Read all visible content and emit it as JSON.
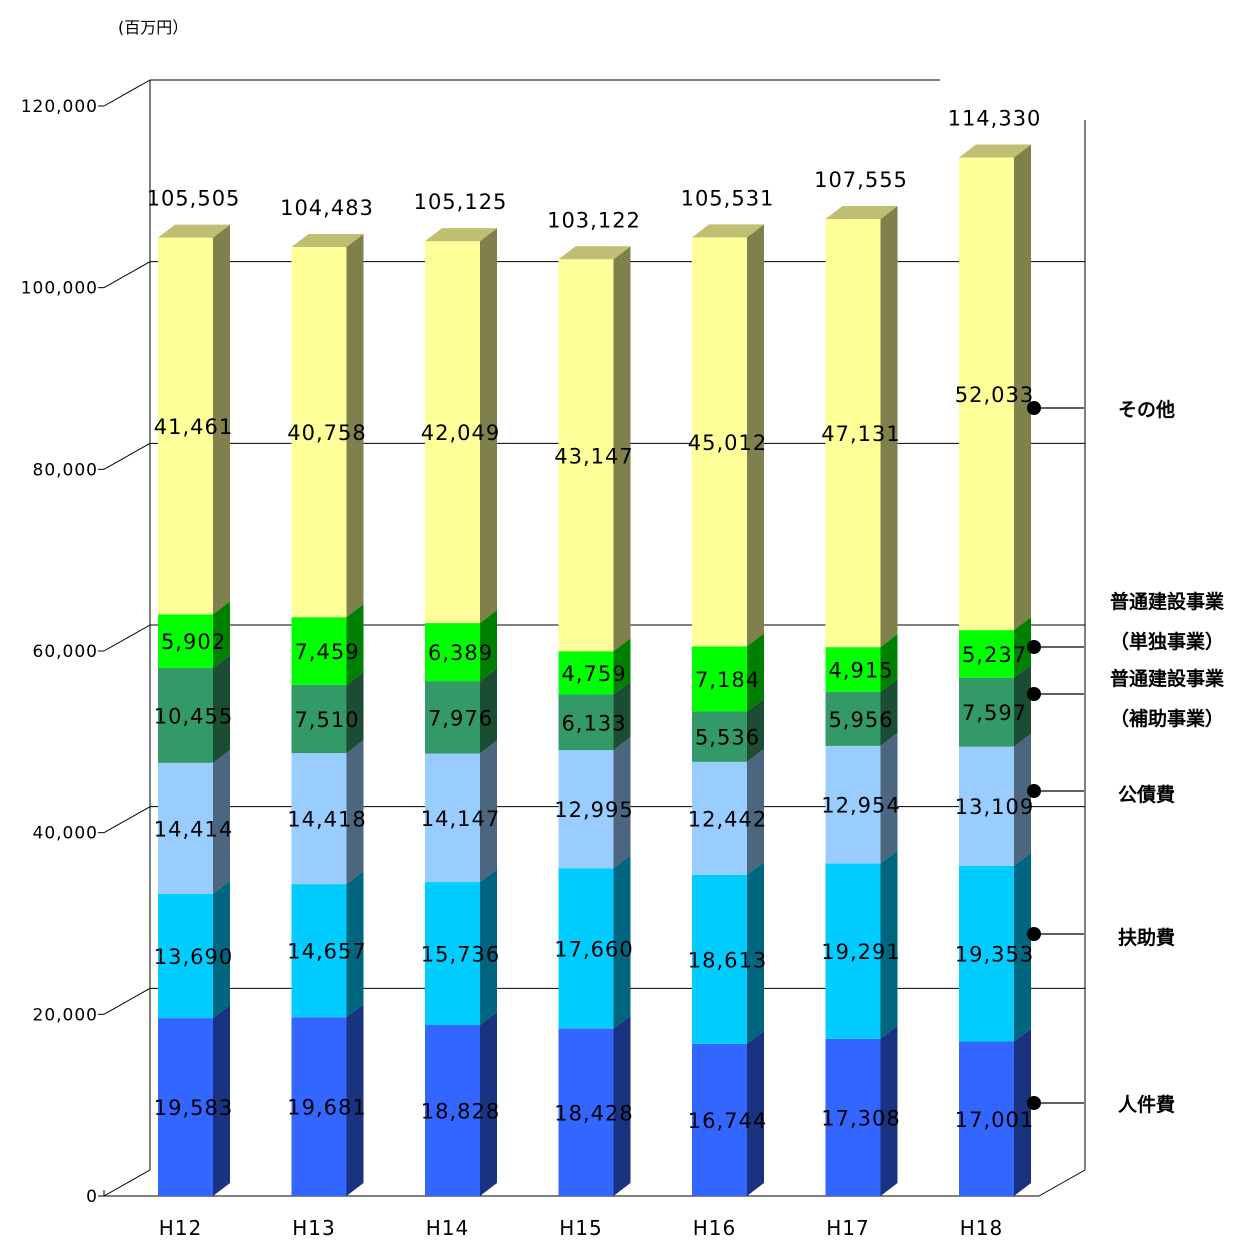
{
  "chart_data": {
    "type": "bar",
    "stacked": true,
    "unit": "(百万円）",
    "categories": [
      "H12",
      "H13",
      "H14",
      "H15",
      "H16",
      "H17",
      "H18"
    ],
    "series": [
      {
        "name": "人件費",
        "color": "#3366FF",
        "values": [
          19583,
          19681,
          18828,
          18428,
          16744,
          17308,
          17001
        ]
      },
      {
        "name": "扶助費",
        "color": "#00CCFF",
        "values": [
          13690,
          14657,
          15736,
          17660,
          18613,
          19291,
          19353
        ]
      },
      {
        "name": "公債費",
        "color": "#99CCFF",
        "values": [
          14414,
          14418,
          14147,
          12995,
          12442,
          12954,
          13109
        ]
      },
      {
        "name": "普通建設事業（補助事業）",
        "color": "#339966",
        "values": [
          10455,
          7510,
          7976,
          6133,
          5536,
          5956,
          7597
        ]
      },
      {
        "name": "普通建設事業（単独事業）",
        "color": "#00FF00",
        "values": [
          5902,
          7459,
          6389,
          4759,
          7184,
          4915,
          5237
        ]
      },
      {
        "name": "その他",
        "color": "#FFFF99",
        "values": [
          41461,
          40758,
          42049,
          43147,
          45012,
          47131,
          52033
        ]
      }
    ],
    "series_labels": [
      "19,583",
      "19,681",
      "18,828",
      "18,428",
      "16,744",
      "17,308",
      "17,001"
    ],
    "value_labels": [
      [
        "19,583",
        "19,681",
        "18,828",
        "18,428",
        "16,744",
        "17,308",
        "17,001"
      ],
      [
        "13,690",
        "14,657",
        "15,736",
        "17,660",
        "18,613",
        "19,291",
        "19,353"
      ],
      [
        "14,414",
        "14,418",
        "14,147",
        "12,995",
        "12,442",
        "12,954",
        "13,109"
      ],
      [
        "10,455",
        "7,510",
        "7,976",
        "6,133",
        "5,536",
        "5,956",
        "7,597"
      ],
      [
        "5,902",
        "7,459",
        "6,389",
        "4,759",
        "7,184",
        "4,915",
        "5,237"
      ],
      [
        "41,461",
        "40,758",
        "42,049",
        "43,147",
        "45,012",
        "47,131",
        "52,033"
      ]
    ],
    "totals": [
      "105,505",
      "104,483",
      "105,125",
      "103,122",
      "105,531",
      "107,555",
      "114,330"
    ],
    "total_values": [
      105505,
      104483,
      105125,
      103122,
      105531,
      107555,
      114330
    ],
    "yticks": [
      0,
      20000,
      40000,
      60000,
      80000,
      100000,
      120000
    ],
    "ytick_labels": [
      "0",
      "20,000",
      "40,000",
      "60,000",
      "80,000",
      "100,000",
      "120,000"
    ],
    "ylim": [
      0,
      120000
    ],
    "legend": [
      {
        "lines": [
          "その他"
        ],
        "series": 5
      },
      {
        "lines": [
          "普通建設事業",
          "（単独事業）"
        ],
        "series": 4
      },
      {
        "lines": [
          "普通建設事業",
          "（補助事業）"
        ],
        "series": 3
      },
      {
        "lines": [
          "公債費"
        ],
        "series": 2
      },
      {
        "lines": [
          "扶助費"
        ],
        "series": 1
      },
      {
        "lines": [
          "人件費"
        ],
        "series": 0
      }
    ],
    "legend_placement": "right",
    "grid": true
  }
}
